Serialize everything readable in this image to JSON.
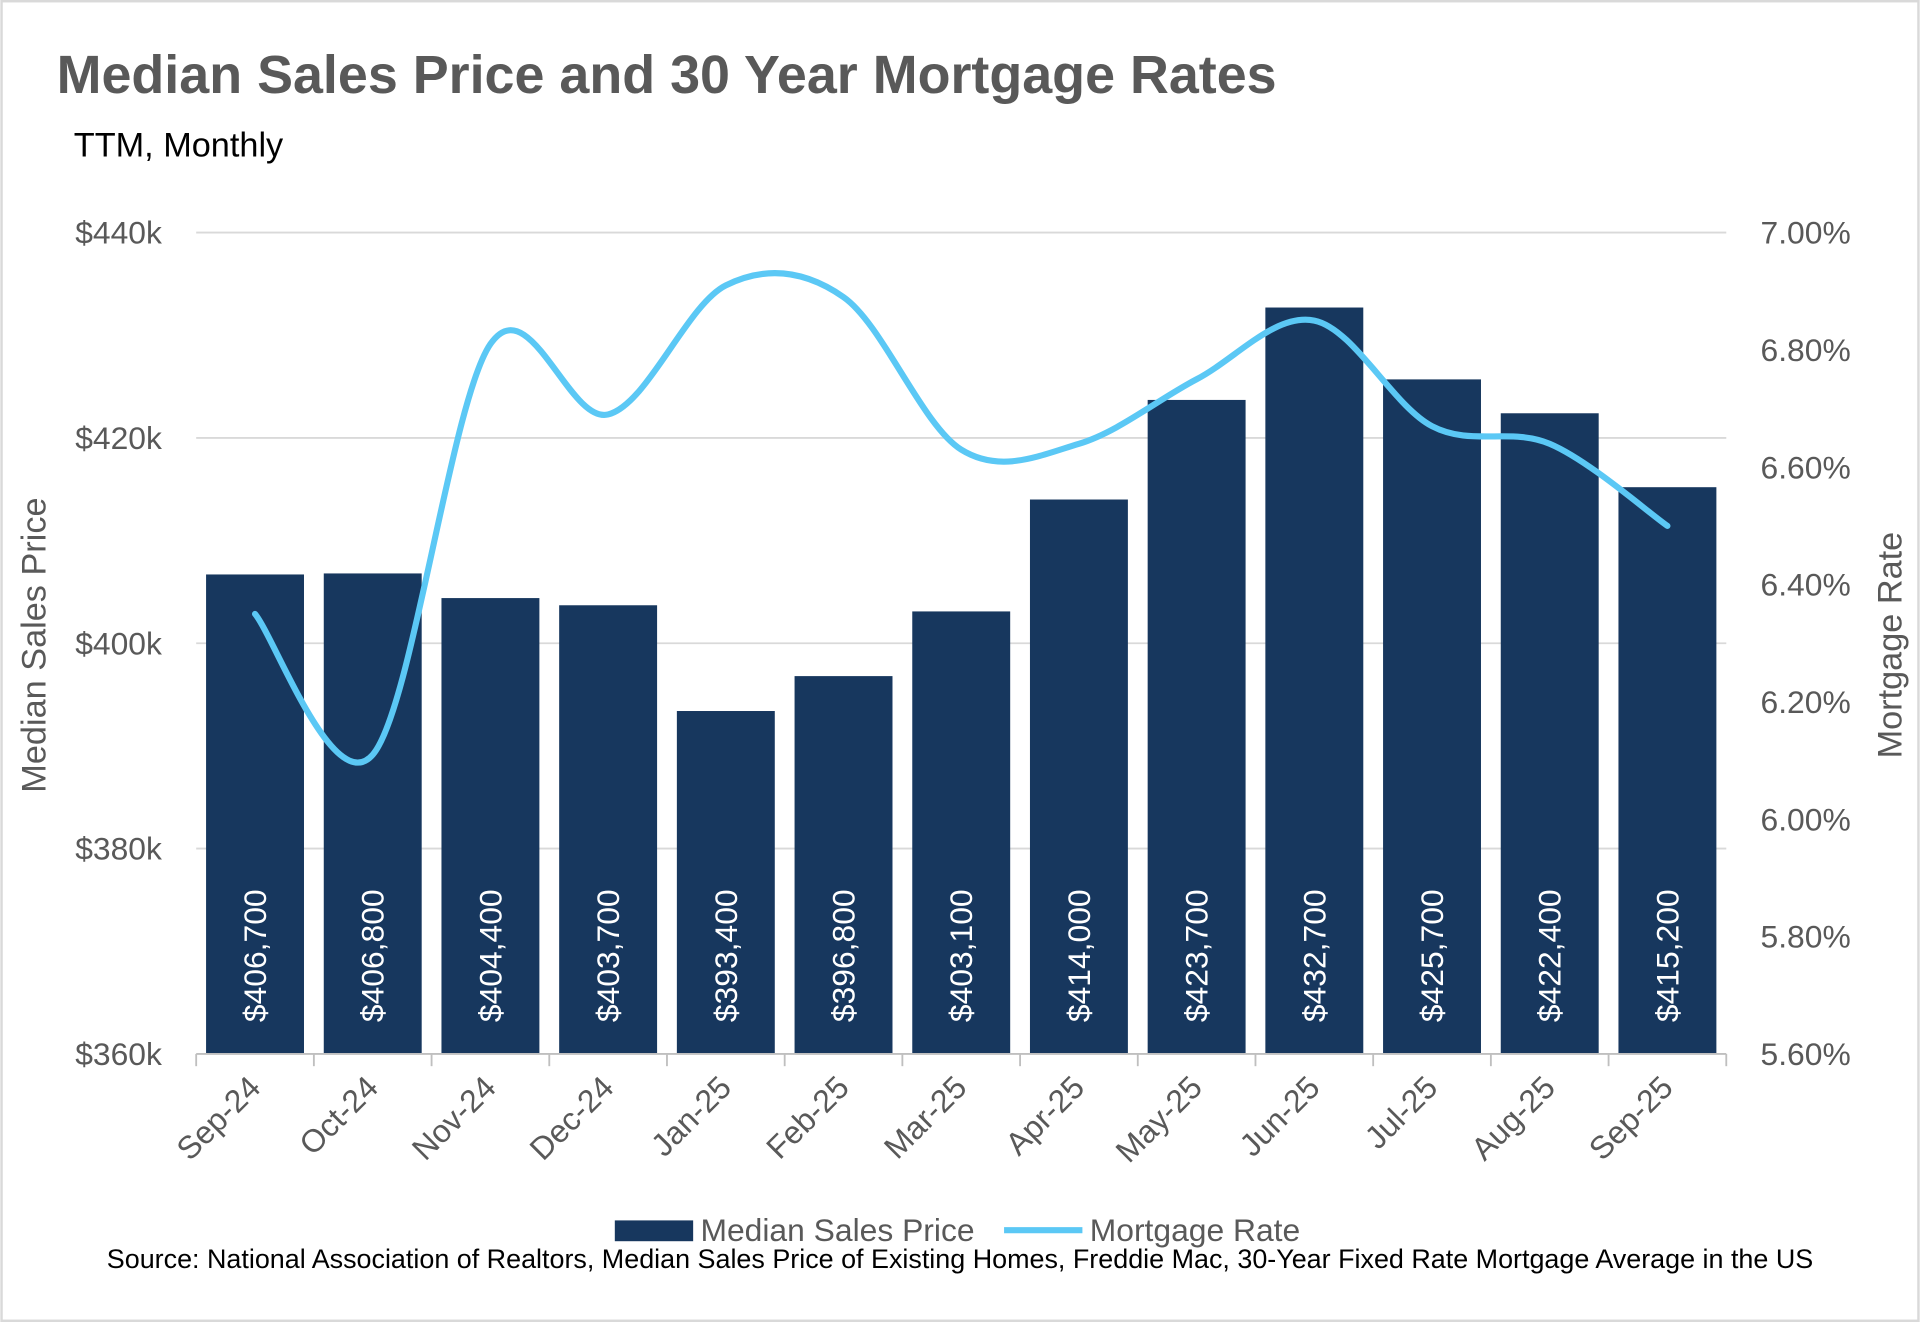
{
  "chart_data": {
    "type": "bar+line",
    "title": "Median Sales Price and 30 Year Mortgage Rates",
    "subtitle": "TTM, Monthly",
    "categories": [
      "Sep-24",
      "Oct-24",
      "Nov-24",
      "Dec-24",
      "Jan-25",
      "Feb-25",
      "Mar-25",
      "Apr-25",
      "May-25",
      "Jun-25",
      "Jul-25",
      "Aug-25",
      "Sep-25"
    ],
    "series": [
      {
        "name": "Median Sales Price",
        "type": "bar",
        "axis": "left",
        "color": "#17375e",
        "values": [
          406700,
          406800,
          404400,
          403700,
          393400,
          396800,
          403100,
          414000,
          423700,
          432700,
          425700,
          422400,
          415200
        ],
        "labels": [
          "$406,700",
          "$406,800",
          "$404,400",
          "$403,700",
          "$393,400",
          "$396,800",
          "$403,100",
          "$414,000",
          "$423,700",
          "$432,700",
          "$425,700",
          "$422,400",
          "$415,200"
        ]
      },
      {
        "name": "Mortgage Rate",
        "type": "line",
        "smooth": true,
        "axis": "right",
        "color": "#5bc8f5",
        "values": [
          6.35,
          6.11,
          6.81,
          6.69,
          6.91,
          6.89,
          6.63,
          6.64,
          6.75,
          6.85,
          6.67,
          6.64,
          6.5
        ]
      }
    ],
    "ylabel": "Median Sales Price",
    "ylim": [
      360000,
      440000
    ],
    "yticks": [
      "$360k",
      "$380k",
      "$400k",
      "$420k",
      "$440k"
    ],
    "y2label": "Mortgage Rate",
    "y2lim": [
      5.6,
      7.0
    ],
    "y2ticks": [
      "5.60%",
      "5.80%",
      "6.00%",
      "6.20%",
      "6.40%",
      "6.60%",
      "6.80%",
      "7.00%"
    ],
    "grid": true,
    "legend": "bottom",
    "source": "Source: National Association of Realtors, Median Sales Price of Existing Homes, Freddie Mac, 30-Year Fixed Rate Mortgage Average in the US"
  }
}
